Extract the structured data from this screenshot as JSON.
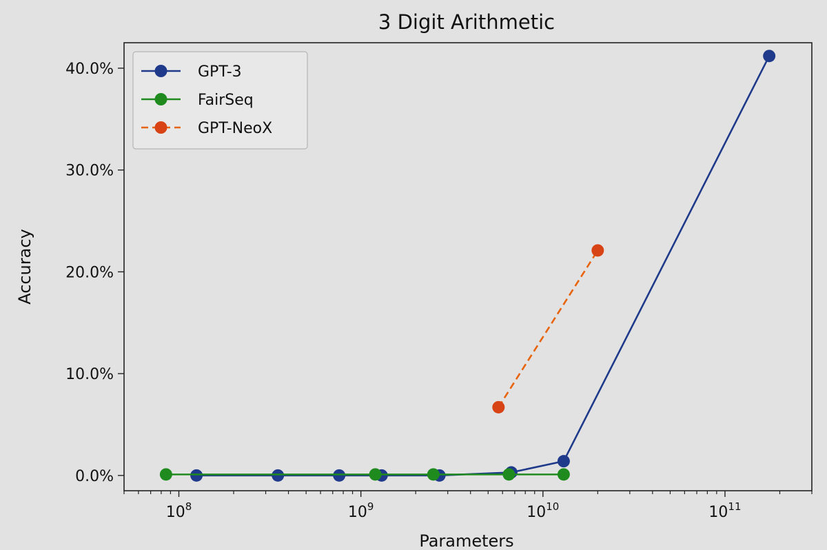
{
  "chart_data": {
    "type": "line",
    "title": "3 Digit Arithmetic",
    "xlabel": "Parameters",
    "ylabel": "Accuracy",
    "x_scale": "log",
    "xlim": [
      50000000,
      300000000000
    ],
    "ylim": [
      -1.5,
      42.5
    ],
    "x_ticks": [
      {
        "value": 100000000,
        "base": "10",
        "exp": "8"
      },
      {
        "value": 1000000000,
        "base": "10",
        "exp": "9"
      },
      {
        "value": 10000000000,
        "base": "10",
        "exp": "10"
      },
      {
        "value": 100000000000,
        "base": "10",
        "exp": "11"
      }
    ],
    "y_ticks": [
      {
        "value": 0,
        "label": "0.0%"
      },
      {
        "value": 10,
        "label": "10.0%"
      },
      {
        "value": 20,
        "label": "20.0%"
      },
      {
        "value": 30,
        "label": "30.0%"
      },
      {
        "value": 40,
        "label": "40.0%"
      }
    ],
    "legend_position": "top-left",
    "grid": false,
    "series": [
      {
        "name": "GPT-3",
        "color": "#1f3a8a",
        "line_style": "solid",
        "marker": "circle",
        "x": [
          125000000,
          350000000,
          760000000,
          1300000000,
          2700000000,
          6700000000,
          13000000000,
          175000000000
        ],
        "y": [
          0.0,
          0.0,
          0.0,
          0.0,
          0.0,
          0.3,
          1.4,
          41.2
        ]
      },
      {
        "name": "FairSeq",
        "color": "#1f8b1f",
        "line_style": "solid",
        "marker": "circle",
        "x": [
          85000000,
          1200000000,
          2500000000,
          6500000000,
          13000000000
        ],
        "y": [
          0.1,
          0.1,
          0.1,
          0.1,
          0.1
        ]
      },
      {
        "name": "GPT-NeoX",
        "color": "#e8640c",
        "marker_color": "#d84315",
        "line_style": "dashed",
        "marker": "circle",
        "x": [
          5700000000,
          20000000000
        ],
        "y": [
          6.7,
          22.1
        ]
      }
    ]
  }
}
